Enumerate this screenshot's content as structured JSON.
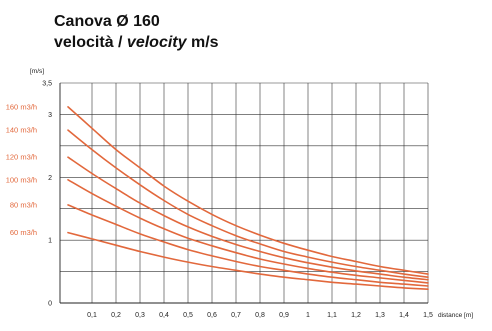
{
  "chart_data": {
    "type": "line",
    "title": "Canova Ø 160",
    "subtitle": {
      "part1": "velocità / ",
      "part2": "velocity",
      "part3": " m/s"
    },
    "ylabel": "[m/s]",
    "xlabel": "distance [m]",
    "xlim": [
      0,
      1.5
    ],
    "ylim": [
      0,
      3.5
    ],
    "x_ticks": [
      0.1,
      0.2,
      0.3,
      0.4,
      0.5,
      0.6,
      0.7,
      0.8,
      0.9,
      1.0,
      1.1,
      1.2,
      1.3,
      1.4,
      1.5
    ],
    "x_tick_labels": [
      "0,1",
      "0,2",
      "0,3",
      "0,4",
      "0,5",
      "0,6",
      "0,7",
      "0,8",
      "0,9",
      "1",
      "1,1",
      "1,2",
      "1,3",
      "1,4",
      "1,5"
    ],
    "y_ticks": [
      0,
      1,
      2,
      3,
      3.5
    ],
    "y_tick_labels": [
      "0",
      "1",
      "2",
      "3",
      "3,5"
    ],
    "grid": true,
    "line_color": "#e2683c",
    "label_color": "#e2683c",
    "x": [
      0,
      0.1,
      0.2,
      0.3,
      0.4,
      0.5,
      0.6,
      0.7,
      0.8,
      0.9,
      1.0,
      1.1,
      1.2,
      1.3,
      1.4,
      1.5
    ],
    "series": [
      {
        "name": "160 m3/h",
        "values": [
          3.12,
          2.78,
          2.44,
          2.15,
          1.86,
          1.62,
          1.41,
          1.23,
          1.08,
          0.95,
          0.84,
          0.74,
          0.66,
          0.58,
          0.52,
          0.46
        ]
      },
      {
        "name": "140 m3/h",
        "values": [
          2.75,
          2.44,
          2.15,
          1.88,
          1.63,
          1.41,
          1.23,
          1.07,
          0.94,
          0.82,
          0.73,
          0.65,
          0.58,
          0.52,
          0.46,
          0.41
        ]
      },
      {
        "name": "120 m3/h",
        "values": [
          2.32,
          2.06,
          1.82,
          1.59,
          1.39,
          1.21,
          1.06,
          0.93,
          0.82,
          0.72,
          0.64,
          0.57,
          0.51,
          0.46,
          0.41,
          0.37
        ]
      },
      {
        "name": "100 m3/h",
        "values": [
          1.96,
          1.74,
          1.54,
          1.35,
          1.18,
          1.03,
          0.91,
          0.8,
          0.7,
          0.62,
          0.55,
          0.49,
          0.44,
          0.4,
          0.36,
          0.32
        ]
      },
      {
        "name": "80 m3/h",
        "values": [
          1.56,
          1.4,
          1.25,
          1.1,
          0.97,
          0.85,
          0.75,
          0.66,
          0.58,
          0.52,
          0.46,
          0.41,
          0.37,
          0.33,
          0.3,
          0.27
        ]
      },
      {
        "name": "60 m3/h",
        "values": [
          1.12,
          1.02,
          0.92,
          0.82,
          0.73,
          0.65,
          0.58,
          0.52,
          0.46,
          0.41,
          0.37,
          0.33,
          0.3,
          0.27,
          0.24,
          0.22
        ]
      }
    ]
  }
}
